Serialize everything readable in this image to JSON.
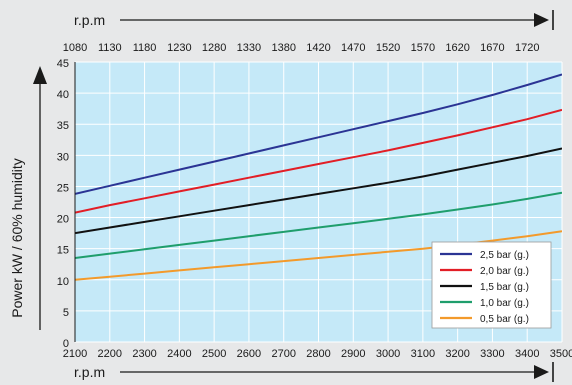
{
  "chart_data": {
    "type": "line",
    "xlabel": "r.p.m",
    "x2label": "r.p.m",
    "ylabel": "Power kW / 60% humidity",
    "x": [
      2100,
      2200,
      2300,
      2400,
      2500,
      2600,
      2700,
      2800,
      2900,
      3000,
      3100,
      3200,
      3300,
      3400,
      3500
    ],
    "xticks": [
      "2100",
      "2200",
      "2300",
      "2400",
      "2500",
      "2600",
      "2700",
      "2800",
      "2900",
      "3000",
      "3100",
      "3200",
      "3300",
      "3400",
      "3500"
    ],
    "xlim": [
      2100,
      3500
    ],
    "x2ticks": [
      {
        "value": 2100,
        "label": "1080"
      },
      {
        "value": 2200,
        "label": "1130"
      },
      {
        "value": 2300,
        "label": "1180"
      },
      {
        "value": 2400,
        "label": "1230"
      },
      {
        "value": 2500,
        "label": "1280"
      },
      {
        "value": 2600,
        "label": "1330"
      },
      {
        "value": 2700,
        "label": "1380"
      },
      {
        "value": 2800,
        "label": "1420"
      },
      {
        "value": 2900,
        "label": "1470"
      },
      {
        "value": 3000,
        "label": "1520"
      },
      {
        "value": 3100,
        "label": "1570"
      },
      {
        "value": 3200,
        "label": "1620"
      },
      {
        "value": 3300,
        "label": "1670"
      },
      {
        "value": 3400,
        "label": "1720"
      }
    ],
    "ylim": [
      0,
      45
    ],
    "yticks": [
      0,
      5,
      10,
      15,
      20,
      25,
      30,
      35,
      40,
      45
    ],
    "grid": true,
    "legend_position": "bottom-right",
    "series": [
      {
        "name": "2,5  bar (g.)",
        "color": "#2b3494",
        "values": [
          23.8,
          25.1,
          26.4,
          27.7,
          29.0,
          30.3,
          31.6,
          32.9,
          34.2,
          35.5,
          36.8,
          38.2,
          39.7,
          41.3,
          43.0
        ]
      },
      {
        "name": "2,0  bar (g.)",
        "color": "#e21e26",
        "values": [
          20.8,
          22.0,
          23.1,
          24.2,
          25.3,
          26.4,
          27.5,
          28.6,
          29.7,
          30.8,
          32.0,
          33.2,
          34.5,
          35.8,
          37.3
        ]
      },
      {
        "name": "1,5  bar (g.)",
        "color": "#111111",
        "values": [
          17.5,
          18.4,
          19.3,
          20.2,
          21.1,
          22.0,
          22.9,
          23.8,
          24.7,
          25.6,
          26.6,
          27.7,
          28.8,
          29.9,
          31.1
        ]
      },
      {
        "name": "1,0  bar (g.)",
        "color": "#1f9e6c",
        "values": [
          13.5,
          14.2,
          14.9,
          15.6,
          16.3,
          17.0,
          17.7,
          18.4,
          19.1,
          19.8,
          20.5,
          21.3,
          22.1,
          23.0,
          24.0
        ]
      },
      {
        "name": "0,5  bar (g.)",
        "color": "#f39a2b",
        "values": [
          10.0,
          10.5,
          11.0,
          11.5,
          12.0,
          12.5,
          13.0,
          13.5,
          14.0,
          14.5,
          15.0,
          15.6,
          16.3,
          17.0,
          17.8
        ]
      }
    ]
  }
}
